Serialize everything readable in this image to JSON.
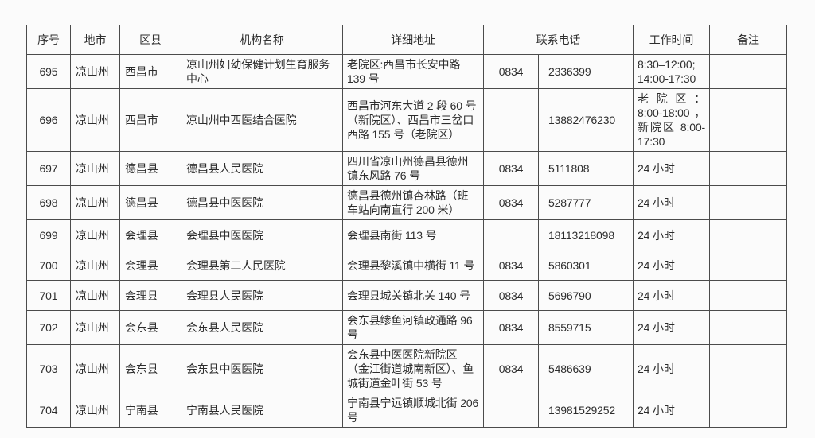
{
  "table": {
    "headers": {
      "seq": "序号",
      "city": "地市",
      "district": "区县",
      "institution": "机构名称",
      "address": "详细地址",
      "phone": "联系电话",
      "hours": "工作时间",
      "remark": "备注"
    },
    "rows": [
      {
        "seq": "695",
        "city": "凉山州",
        "district": "西昌市",
        "institution": "凉山州妇幼保健计划生育服务中心",
        "address": "老院区:西昌市长安中路 139 号",
        "area_code": "0834",
        "phone": "2336399",
        "hours": "8:30–12:00; 14:00-17:30",
        "remark": ""
      },
      {
        "seq": "696",
        "city": "凉山州",
        "district": "西昌市",
        "institution": "凉山州中西医结合医院",
        "address": "西昌市河东大道 2 段 60 号（新院区）、西昌市三岔口西路 155 号（老院区）",
        "area_code": "",
        "phone": "13882476230",
        "hours": "老院区：8:00-18:00，新院区 8:00-17:30",
        "remark": ""
      },
      {
        "seq": "697",
        "city": "凉山州",
        "district": "德昌县",
        "institution": "德昌县人民医院",
        "address": "四川省凉山州德昌县德州镇东风路 76 号",
        "area_code": "0834",
        "phone": "5111808",
        "hours": "24 小时",
        "remark": ""
      },
      {
        "seq": "698",
        "city": "凉山州",
        "district": "德昌县",
        "institution": "德昌县中医医院",
        "address": "德昌县德州镇杏林路（班车站向南直行 200 米）",
        "area_code": "0834",
        "phone": "5287777",
        "hours": "24 小时",
        "remark": ""
      },
      {
        "seq": "699",
        "city": "凉山州",
        "district": "会理县",
        "institution": "会理县中医医院",
        "address": "会理县南街 113 号",
        "area_code": "",
        "phone": "18113218098",
        "hours": "24 小时",
        "remark": ""
      },
      {
        "seq": "700",
        "city": "凉山州",
        "district": "会理县",
        "institution": "会理县第二人民医院",
        "address": "会理县黎溪镇中横街 11 号",
        "area_code": "0834",
        "phone": "5860301",
        "hours": "24 小时",
        "remark": ""
      },
      {
        "seq": "701",
        "city": "凉山州",
        "district": "会理县",
        "institution": "会理县人民医院",
        "address": "会理县城关镇北关 140 号",
        "area_code": "0834",
        "phone": "5696790",
        "hours": "24 小时",
        "remark": ""
      },
      {
        "seq": "702",
        "city": "凉山州",
        "district": "会东县",
        "institution": "会东县人民医院",
        "address": "会东县鲹鱼河镇政通路 96 号",
        "area_code": "0834",
        "phone": "8559715",
        "hours": "24 小时",
        "remark": ""
      },
      {
        "seq": "703",
        "city": "凉山州",
        "district": "会东县",
        "institution": "会东县中医医院",
        "address": "会东县中医医院新院区（金江街道城南新区）、鱼城街道金叶街 53 号",
        "area_code": "0834",
        "phone": "5486639",
        "hours": "24 小时",
        "remark": ""
      },
      {
        "seq": "704",
        "city": "凉山州",
        "district": "宁南县",
        "institution": "宁南县人民医院",
        "address": "宁南县宁远镇顺城北街 206 号",
        "area_code": "",
        "phone": "13981529252",
        "hours": "24 小时",
        "remark": ""
      }
    ],
    "colors": {
      "background": "#fbfbfb",
      "border": "#4b4b4b",
      "text": "#2d2d2d"
    }
  }
}
